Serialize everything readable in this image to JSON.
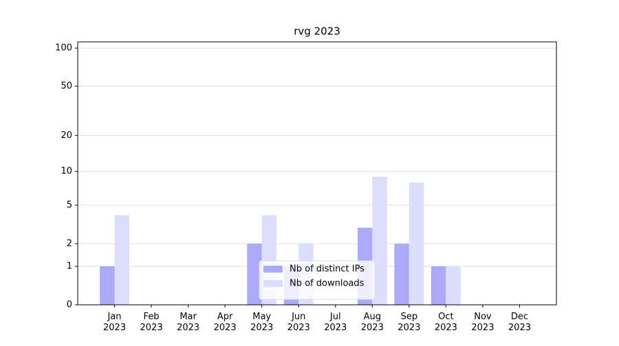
{
  "chart_data": {
    "type": "bar",
    "title": "rvg 2023",
    "y_scale": "log1p",
    "categories": [
      "Jan 2023",
      "Feb 2023",
      "Mar 2023",
      "Apr 2023",
      "May 2023",
      "Jun 2023",
      "Jul 2023",
      "Aug 2023",
      "Sep 2023",
      "Oct 2023",
      "Nov 2023",
      "Dec 2023"
    ],
    "series": [
      {
        "name": "Nb of distinct IPs",
        "color": "#aaaaf9",
        "values": [
          1,
          0,
          0,
          0,
          2,
          1,
          0,
          3,
          2,
          1,
          0,
          0
        ]
      },
      {
        "name": "Nb of downloads",
        "color": "#ddddfd",
        "values": [
          4,
          0,
          0,
          0,
          4,
          2,
          0,
          9,
          8,
          1,
          0,
          0
        ]
      }
    ],
    "ylim": [
      0,
      112
    ],
    "yticks": [
      0,
      1,
      2,
      5,
      10,
      20,
      50,
      100
    ],
    "grid": true,
    "legend": "lower center"
  }
}
